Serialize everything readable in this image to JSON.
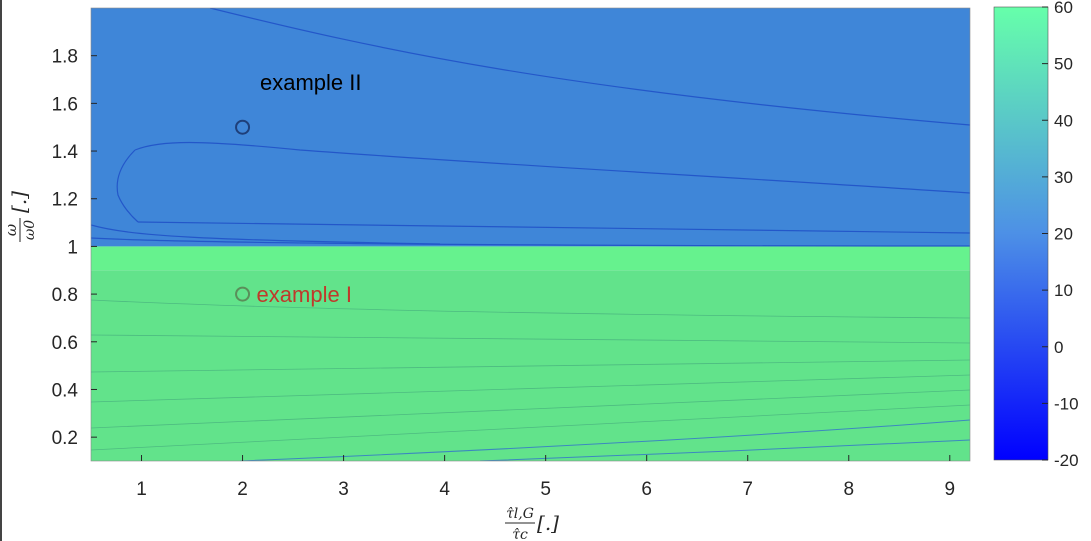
{
  "chart_data": {
    "type": "heatmap",
    "title": "",
    "xlabel": "τ̂l,G / τ̂c [.]",
    "ylabel": "ω / ω0 [.]",
    "xlim": [
      0.5,
      9.2
    ],
    "ylim": [
      0.1,
      2.0
    ],
    "xticks": [
      1,
      2,
      3,
      4,
      5,
      6,
      7,
      8,
      9
    ],
    "yticks": [
      0.2,
      0.4,
      0.6,
      0.8,
      1,
      1.2,
      1.4,
      1.6,
      1.8
    ],
    "ytick_labels": [
      "0.2",
      "0.4",
      "0.6",
      "0.8",
      "1",
      "1.2",
      "1.4",
      "1.6",
      "1.8"
    ],
    "colorbar": {
      "range": [
        -20,
        60
      ],
      "ticks": [
        -20,
        -10,
        0,
        10,
        20,
        30,
        40,
        50,
        60
      ],
      "colormap": [
        "#0000ff",
        "#4d90e6",
        "#66ffaa"
      ]
    },
    "regions": [
      {
        "y_from": 1.0,
        "y_to": 2.0,
        "value": 20,
        "color": "#3f86d8"
      },
      {
        "y_from": 0.9,
        "y_to": 1.0,
        "value": 58,
        "color": "#66f28e"
      },
      {
        "y_from": 0.1,
        "y_to": 0.9,
        "value": 50,
        "color": "#62e38b"
      }
    ],
    "grid": false,
    "annotations": [
      {
        "text": "example I",
        "x": 2.0,
        "y": 0.8,
        "color": "#c0392b"
      },
      {
        "text": "example II",
        "x": 2.0,
        "y": 1.5,
        "color": "#000000"
      }
    ]
  },
  "labels": {
    "xlabel_num": "τ̂l,G",
    "xlabel_den": "τ̂c",
    "ylabel_num": "ω",
    "ylabel_den": "ω0",
    "unit": "[.]",
    "example1": "example I",
    "example2": "example II"
  }
}
